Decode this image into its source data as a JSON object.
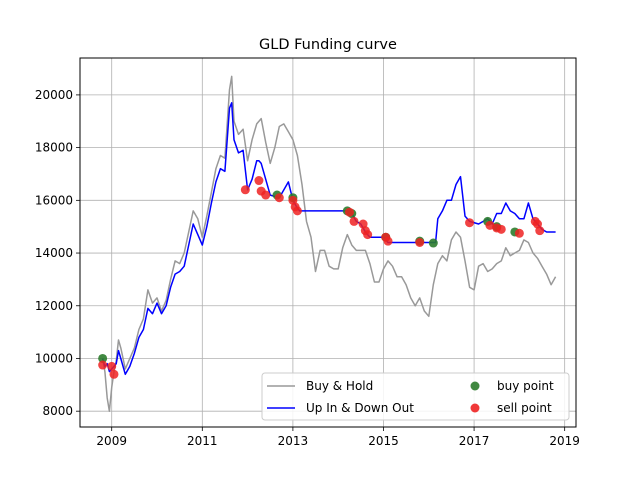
{
  "chart_data": {
    "type": "line",
    "title": "GLD Funding curve",
    "xlabel": "",
    "ylabel": "",
    "xlim": [
      2008.3,
      2019.25
    ],
    "ylim": [
      7400,
      21400
    ],
    "grid": true,
    "legend_position": "lower-right",
    "x_ticks": [
      2009,
      2011,
      2013,
      2015,
      2017,
      2019
    ],
    "y_ticks": [
      8000,
      10000,
      12000,
      14000,
      16000,
      18000,
      20000
    ],
    "x_tick_labels": [
      "2009",
      "2011",
      "2013",
      "2015",
      "2017",
      "2019"
    ],
    "y_tick_labels": [
      "8000",
      "10000",
      "12000",
      "14000",
      "16000",
      "18000",
      "20000"
    ],
    "legend": [
      {
        "label": "Buy & Hold",
        "kind": "line",
        "color": "#999999"
      },
      {
        "label": "Up In & Down Out",
        "kind": "line",
        "color": "#0000ff"
      },
      {
        "label": "buy point",
        "kind": "marker",
        "color": "#2c7c2c"
      },
      {
        "label": "sell point",
        "kind": "marker",
        "color": "#ee2222"
      }
    ],
    "series": [
      {
        "name": "Buy & Hold",
        "color": "#999999",
        "x": [
          2008.8,
          2008.85,
          2008.9,
          2008.95,
          2009.0,
          2009.05,
          2009.1,
          2009.15,
          2009.2,
          2009.3,
          2009.4,
          2009.5,
          2009.6,
          2009.7,
          2009.8,
          2009.9,
          2010.0,
          2010.1,
          2010.2,
          2010.3,
          2010.4,
          2010.5,
          2010.6,
          2010.7,
          2010.8,
          2010.9,
          2011.0,
          2011.1,
          2011.2,
          2011.3,
          2011.4,
          2011.5,
          2011.6,
          2011.65,
          2011.7,
          2011.8,
          2011.9,
          2012.0,
          2012.1,
          2012.2,
          2012.3,
          2012.4,
          2012.5,
          2012.6,
          2012.7,
          2012.8,
          2012.9,
          2013.0,
          2013.1,
          2013.2,
          2013.3,
          2013.4,
          2013.5,
          2013.6,
          2013.7,
          2013.8,
          2013.9,
          2014.0,
          2014.1,
          2014.2,
          2014.3,
          2014.4,
          2014.5,
          2014.6,
          2014.7,
          2014.8,
          2014.9,
          2015.0,
          2015.1,
          2015.2,
          2015.3,
          2015.4,
          2015.5,
          2015.6,
          2015.7,
          2015.8,
          2015.9,
          2016.0,
          2016.1,
          2016.2,
          2016.3,
          2016.4,
          2016.5,
          2016.6,
          2016.7,
          2016.8,
          2016.9,
          2017.0,
          2017.1,
          2017.2,
          2017.3,
          2017.4,
          2017.5,
          2017.6,
          2017.7,
          2017.8,
          2017.9,
          2018.0,
          2018.1,
          2018.2,
          2018.3,
          2018.4,
          2018.5,
          2018.6,
          2018.7,
          2018.8
        ],
        "values": [
          10000,
          9500,
          8500,
          8000,
          8900,
          9500,
          9900,
          10700,
          10400,
          9600,
          10000,
          10400,
          11100,
          11500,
          12600,
          12100,
          12300,
          11800,
          12200,
          13000,
          13700,
          13600,
          14000,
          14800,
          15600,
          15300,
          14600,
          15400,
          16300,
          17200,
          17700,
          17600,
          20200,
          20700,
          19000,
          18500,
          18700,
          17500,
          18300,
          18900,
          19100,
          18200,
          17400,
          18000,
          18800,
          18900,
          18600,
          18300,
          17700,
          16600,
          15200,
          14600,
          13300,
          14100,
          14100,
          13500,
          13400,
          13400,
          14200,
          14700,
          14300,
          14100,
          14100,
          14100,
          13600,
          12900,
          12900,
          13400,
          13700,
          13500,
          13100,
          13100,
          12800,
          12300,
          12000,
          12300,
          11800,
          11600,
          12800,
          13600,
          13900,
          13700,
          14500,
          14800,
          14600,
          13700,
          12700,
          12600,
          13500,
          13600,
          13300,
          13400,
          13600,
          13700,
          14200,
          13900,
          14000,
          14100,
          14500,
          14400,
          14000,
          13800,
          13500,
          13200,
          12800,
          13100
        ]
      },
      {
        "name": "Up In & Down Out",
        "color": "#0000ff",
        "x": [
          2008.8,
          2008.85,
          2008.9,
          2008.95,
          2009.0,
          2009.05,
          2009.1,
          2009.15,
          2009.2,
          2009.3,
          2009.4,
          2009.5,
          2009.6,
          2009.7,
          2009.8,
          2009.9,
          2010.0,
          2010.1,
          2010.2,
          2010.3,
          2010.4,
          2010.5,
          2010.6,
          2010.7,
          2010.8,
          2010.9,
          2011.0,
          2011.1,
          2011.2,
          2011.3,
          2011.4,
          2011.5,
          2011.6,
          2011.65,
          2011.7,
          2011.8,
          2011.9,
          2012.0,
          2012.1,
          2012.2,
          2012.25,
          2012.3,
          2012.5,
          2012.7,
          2012.9,
          2013.0,
          2013.1,
          2013.15,
          2013.3,
          2013.6,
          2013.9,
          2014.2,
          2014.25,
          2014.3,
          2014.4,
          2014.5,
          2014.6,
          2014.7,
          2015.0,
          2015.1,
          2015.3,
          2015.6,
          2015.9,
          2016.1,
          2016.15,
          2016.2,
          2016.3,
          2016.4,
          2016.5,
          2016.6,
          2016.7,
          2016.8,
          2016.9,
          2017.1,
          2017.3,
          2017.4,
          2017.5,
          2017.6,
          2017.7,
          2017.8,
          2017.9,
          2018.0,
          2018.1,
          2018.2,
          2018.3,
          2018.4,
          2018.5,
          2018.6,
          2018.8
        ],
        "values": [
          10000,
          9700,
          9800,
          9500,
          9600,
          9700,
          9800,
          10300,
          10000,
          9400,
          9700,
          10200,
          10800,
          11100,
          11900,
          11700,
          12100,
          11700,
          12000,
          12700,
          13200,
          13300,
          13500,
          14300,
          15100,
          14700,
          14300,
          15000,
          15900,
          16700,
          17200,
          17100,
          19500,
          19700,
          18300,
          17800,
          17900,
          16400,
          16800,
          17500,
          17500,
          17400,
          16200,
          16100,
          16700,
          16000,
          15700,
          15600,
          15600,
          15600,
          15600,
          15600,
          15700,
          15500,
          15200,
          15100,
          14800,
          14600,
          14600,
          14400,
          14400,
          14400,
          14400,
          14400,
          14400,
          15300,
          15600,
          16000,
          16000,
          16600,
          16900,
          15400,
          15200,
          15100,
          15300,
          15100,
          15500,
          15500,
          15900,
          15600,
          15500,
          15300,
          15300,
          15900,
          15300,
          15100,
          14900,
          14800,
          14800
        ]
      }
    ],
    "buy_points": {
      "x": [
        2008.8,
        2012.65,
        2013.0,
        2014.2,
        2014.3,
        2015.05,
        2015.8,
        2016.1,
        2017.3,
        2017.5,
        2017.9
      ],
      "y": [
        10000,
        16200,
        16100,
        15600,
        15500,
        14600,
        14450,
        14380,
        15200,
        15000,
        14800
      ]
    },
    "sell_points": {
      "x": [
        2008.8,
        2009.0,
        2009.05,
        2011.95,
        2012.25,
        2012.3,
        2012.4,
        2012.7,
        2013.0,
        2013.05,
        2013.1,
        2014.25,
        2014.35,
        2014.55,
        2014.6,
        2014.65,
        2015.05,
        2015.1,
        2015.8,
        2016.9,
        2017.35,
        2017.5,
        2017.6,
        2018.0,
        2018.35,
        2018.4,
        2018.45
      ],
      "y": [
        9750,
        9700,
        9400,
        16400,
        16750,
        16350,
        16200,
        16100,
        16000,
        15750,
        15600,
        15550,
        15200,
        15100,
        14850,
        14700,
        14600,
        14450,
        14400,
        15150,
        15050,
        14950,
        14900,
        14750,
        15200,
        15100,
        14850
      ]
    }
  }
}
